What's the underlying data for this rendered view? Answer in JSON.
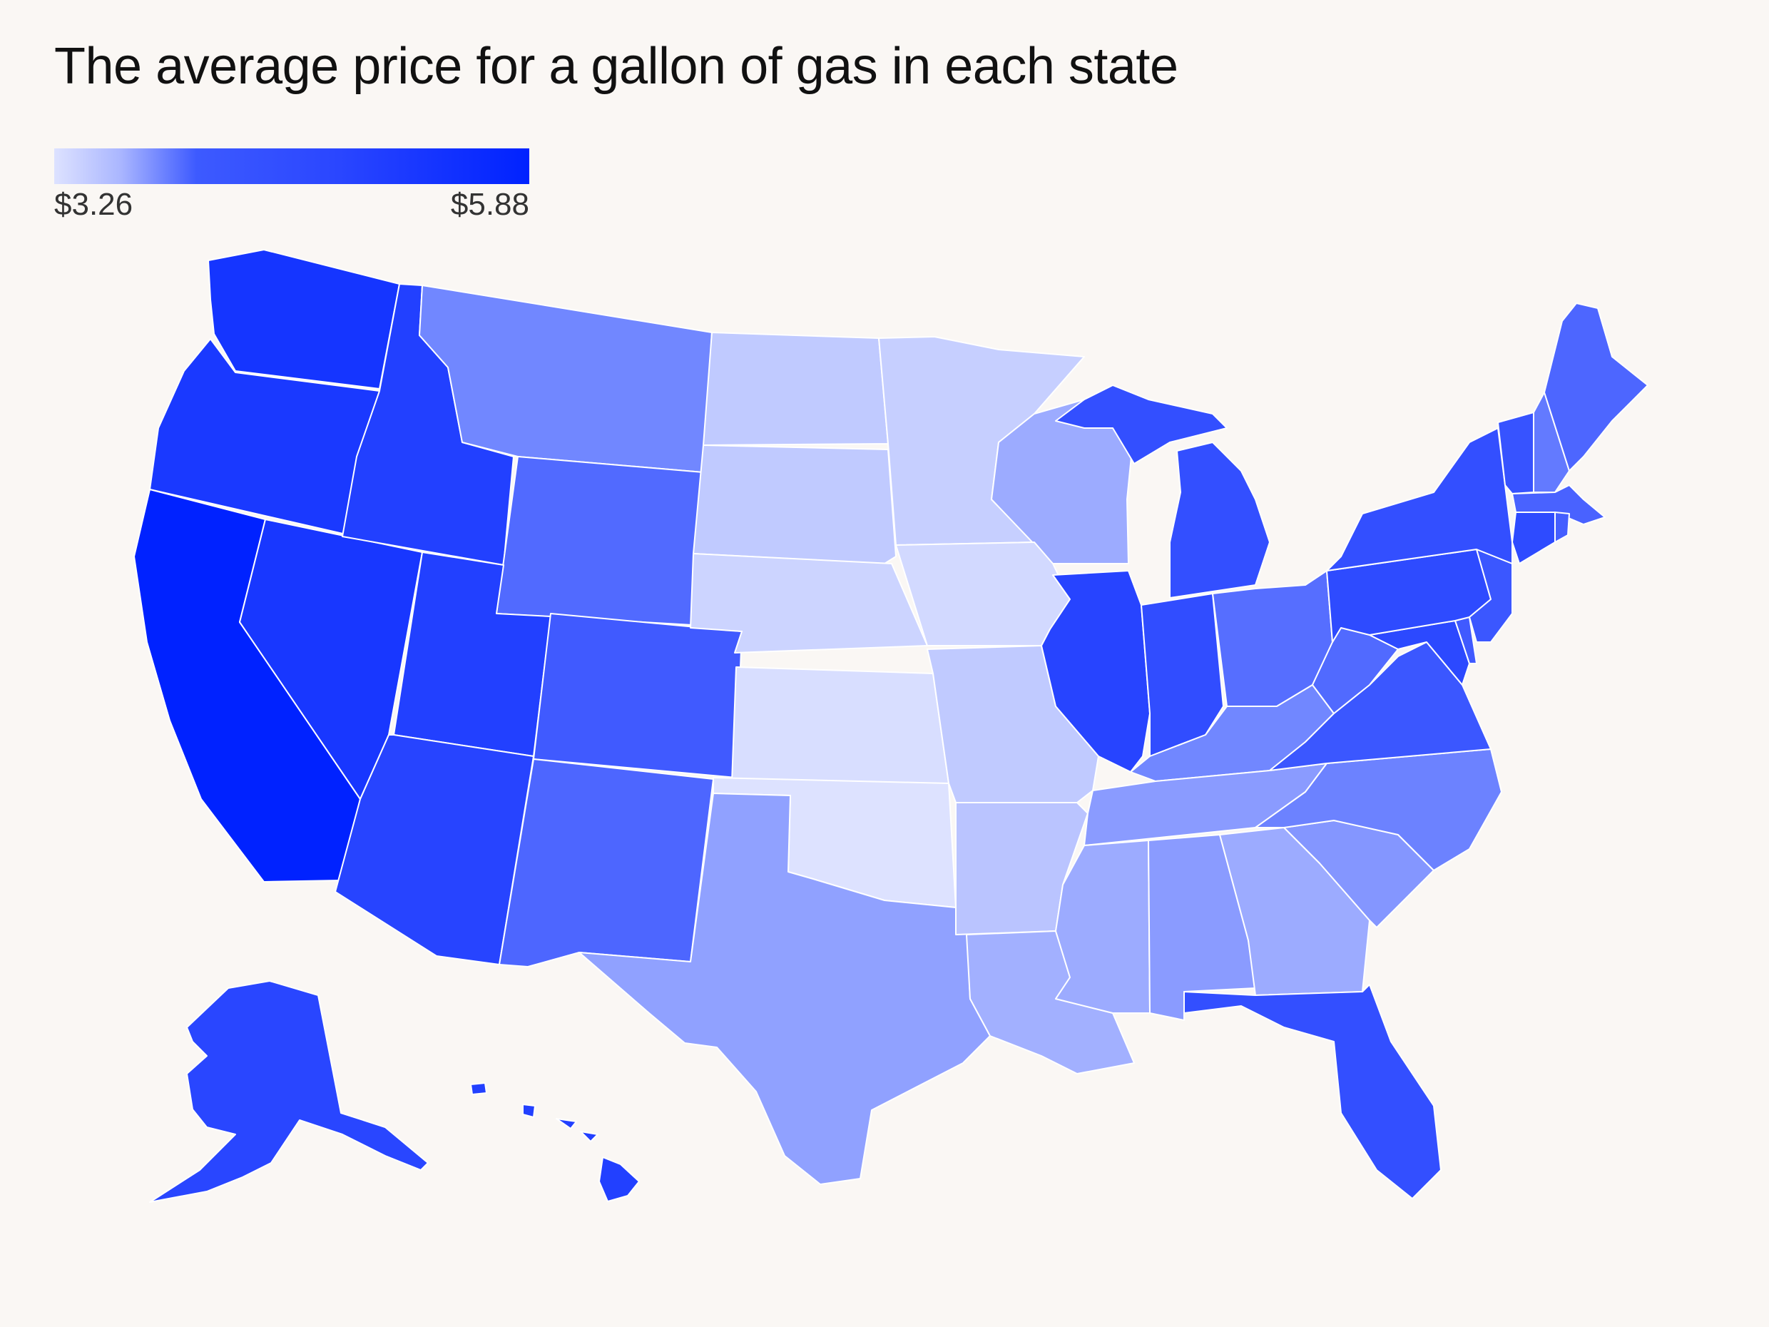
{
  "title": "The average price for a gallon of gas in each state",
  "legend": {
    "min_label": "$3.26",
    "max_label": "$5.88",
    "min_value": 3.26,
    "max_value": 5.88,
    "color_low": "#dde2ff",
    "color_high": "#0022ff"
  },
  "colors": {
    "background": "#faf7f4",
    "border": "#ffffff"
  },
  "chart_data": {
    "type": "choropleth",
    "region": "United States",
    "metric": "average price per gallon of gas (estimated from shade)",
    "states": [
      {
        "state": "CA",
        "value": 5.88
      },
      {
        "state": "WA",
        "value": 5.45
      },
      {
        "state": "OR",
        "value": 5.35
      },
      {
        "state": "NV",
        "value": 5.4
      },
      {
        "state": "ID",
        "value": 5.2
      },
      {
        "state": "UT",
        "value": 5.2
      },
      {
        "state": "AZ",
        "value": 5.1
      },
      {
        "state": "MT",
        "value": 4.15
      },
      {
        "state": "WY",
        "value": 4.5
      },
      {
        "state": "CO",
        "value": 4.7
      },
      {
        "state": "NM",
        "value": 4.55
      },
      {
        "state": "ND",
        "value": 3.5
      },
      {
        "state": "SD",
        "value": 3.5
      },
      {
        "state": "NE",
        "value": 3.4
      },
      {
        "state": "KS",
        "value": 3.3
      },
      {
        "state": "OK",
        "value": 3.26
      },
      {
        "state": "TX",
        "value": 3.9
      },
      {
        "state": "MN",
        "value": 3.45
      },
      {
        "state": "IA",
        "value": 3.35
      },
      {
        "state": "MO",
        "value": 3.5
      },
      {
        "state": "AR",
        "value": 3.55
      },
      {
        "state": "LA",
        "value": 3.75
      },
      {
        "state": "WI",
        "value": 3.8
      },
      {
        "state": "IL",
        "value": 5.1
      },
      {
        "state": "MI",
        "value": 4.85
      },
      {
        "state": "IN",
        "value": 4.9
      },
      {
        "state": "OH",
        "value": 4.45
      },
      {
        "state": "KY",
        "value": 4.15
      },
      {
        "state": "TN",
        "value": 3.95
      },
      {
        "state": "MS",
        "value": 3.8
      },
      {
        "state": "AL",
        "value": 3.95
      },
      {
        "state": "GA",
        "value": 3.8
      },
      {
        "state": "FL",
        "value": 4.85
      },
      {
        "state": "SC",
        "value": 4.0
      },
      {
        "state": "NC",
        "value": 4.2
      },
      {
        "state": "VA",
        "value": 4.75
      },
      {
        "state": "WV",
        "value": 4.5
      },
      {
        "state": "PA",
        "value": 4.95
      },
      {
        "state": "NY",
        "value": 4.85
      },
      {
        "state": "VT",
        "value": 4.8
      },
      {
        "state": "NH",
        "value": 4.3
      },
      {
        "state": "ME",
        "value": 4.55
      },
      {
        "state": "MA",
        "value": 4.6
      },
      {
        "state": "RI",
        "value": 4.65
      },
      {
        "state": "CT",
        "value": 4.95
      },
      {
        "state": "NJ",
        "value": 4.75
      },
      {
        "state": "DE",
        "value": 4.7
      },
      {
        "state": "MD",
        "value": 5.0
      },
      {
        "state": "AK",
        "value": 5.05
      },
      {
        "state": "HI",
        "value": 5.2
      }
    ]
  }
}
